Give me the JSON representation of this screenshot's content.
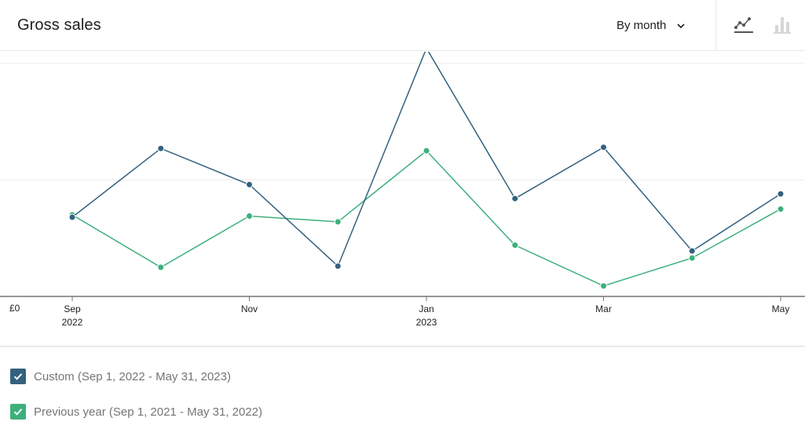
{
  "header": {
    "title": "Gross sales",
    "period_label": "By month"
  },
  "colors": {
    "primary": "#33617f",
    "secondary": "#3cb07b",
    "grid": "#ececec",
    "axis": "#757575"
  },
  "legend": {
    "items": [
      {
        "label": "Custom (Sep 1, 2022 - May 31, 2023)",
        "color": "#33617f",
        "checked": true
      },
      {
        "label": "Previous year (Sep 1, 2021 - May 31, 2022)",
        "color": "#3cb07b",
        "checked": true
      }
    ]
  },
  "chart_data": {
    "type": "line",
    "y_tick_labels": [
      "£0"
    ],
    "ylim": [
      0,
      2100
    ],
    "gridlines": [
      1000,
      2000
    ],
    "x": [
      "Sep 2022",
      "Oct 2022",
      "Nov 2022",
      "Dec 2022",
      "Jan 2023",
      "Feb 2023",
      "Mar 2023",
      "Apr 2023",
      "May 2023"
    ],
    "x_tick_labels": [
      {
        "x": "Sep 2022",
        "line1": "Sep",
        "line2": "2022"
      },
      {
        "x": "Nov 2022",
        "line1": "Nov",
        "line2": ""
      },
      {
        "x": "Jan 2023",
        "line1": "Jan",
        "line2": "2023"
      },
      {
        "x": "Mar 2023",
        "line1": "Mar",
        "line2": ""
      },
      {
        "x": "May 2023",
        "line1": "May",
        "line2": ""
      }
    ],
    "series": [
      {
        "name": "Custom (Sep 1, 2022 - May 31, 2023)",
        "color": "#33617f",
        "values": [
          680,
          1270,
          960,
          260,
          2130,
          840,
          1280,
          390,
          880
        ]
      },
      {
        "name": "Previous year (Sep 1, 2021 - May 31, 2022)",
        "color": "#3cb07b",
        "values": [
          700,
          250,
          690,
          640,
          1250,
          440,
          90,
          330,
          750
        ]
      }
    ]
  }
}
